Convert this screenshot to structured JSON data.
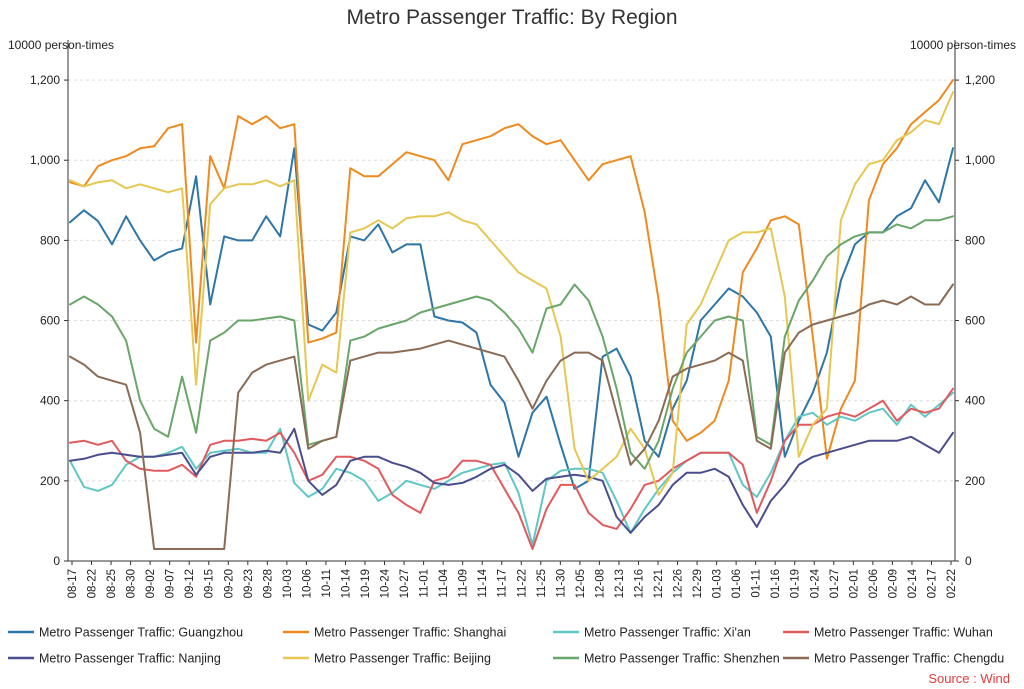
{
  "chart_data": {
    "type": "line",
    "title": "Metro Passenger Traffic: By Region",
    "y_unit_left": "10000 person-times",
    "y_unit_right": "10000 person-times",
    "ylim": [
      0,
      1300
    ],
    "yticks": [
      0,
      200,
      400,
      600,
      800,
      1000,
      1200
    ],
    "ytick_labels": [
      "0",
      "200",
      "400",
      "600",
      "800",
      "1,000",
      "1,200"
    ],
    "grid": true,
    "legend_position": "bottom",
    "x_tick_labels": [
      "08-17",
      "08-22",
      "08-25",
      "08-30",
      "09-02",
      "09-07",
      "09-12",
      "09-15",
      "09-20",
      "09-23",
      "09-28",
      "10-03",
      "10-06",
      "10-11",
      "10-14",
      "10-19",
      "10-24",
      "10-27",
      "11-01",
      "11-04",
      "11-09",
      "11-14",
      "11-17",
      "11-22",
      "11-25",
      "11-30",
      "12-05",
      "12-08",
      "12-13",
      "12-16",
      "12-21",
      "12-26",
      "12-29",
      "01-03",
      "01-06",
      "01-11",
      "01-16",
      "01-19",
      "01-24",
      "01-27",
      "02-01",
      "02-06",
      "02-09",
      "02-14",
      "02-17",
      "02-22"
    ],
    "series": [
      {
        "name": "Metro Passenger Traffic: Guangzhou",
        "color": "#2e75a8",
        "values": [
          845,
          875,
          848,
          790,
          860,
          800,
          750,
          770,
          780,
          960,
          640,
          810,
          800,
          800,
          860,
          810,
          1030,
          590,
          575,
          620,
          810,
          800,
          840,
          770,
          790,
          790,
          610,
          600,
          595,
          570,
          440,
          395,
          260,
          370,
          410,
          290,
          180,
          200,
          510,
          530,
          460,
          300,
          260,
          380,
          450,
          600,
          640,
          680,
          660,
          620,
          560,
          260,
          350,
          420,
          520,
          700,
          790,
          820,
          820,
          860,
          880,
          950,
          895,
          1030
        ]
      },
      {
        "name": "Metro Passenger Traffic: Shanghai",
        "color": "#ee8a1e",
        "values": [
          945,
          935,
          985,
          1000,
          1010,
          1030,
          1035,
          1080,
          1090,
          545,
          1010,
          930,
          1110,
          1090,
          1110,
          1080,
          1090,
          545,
          555,
          570,
          980,
          960,
          960,
          990,
          1020,
          1010,
          1000,
          950,
          1040,
          1050,
          1060,
          1080,
          1090,
          1060,
          1040,
          1050,
          1000,
          950,
          990,
          1000,
          1010,
          870,
          650,
          350,
          300,
          320,
          350,
          450,
          720,
          780,
          850,
          860,
          840,
          560,
          255,
          380,
          450,
          900,
          990,
          1030,
          1090,
          1120,
          1150,
          1200
        ]
      },
      {
        "name": "Metro Passenger Traffic: Xi'an",
        "color": "#5fc7c5",
        "values": [
          250,
          185,
          175,
          190,
          240,
          260,
          260,
          270,
          285,
          230,
          270,
          275,
          280,
          270,
          270,
          330,
          195,
          160,
          180,
          230,
          220,
          200,
          150,
          170,
          200,
          190,
          180,
          200,
          220,
          230,
          240,
          245,
          170,
          40,
          200,
          225,
          230,
          230,
          220,
          150,
          70,
          130,
          180,
          220,
          250,
          270,
          270,
          270,
          190,
          160,
          220,
          300,
          360,
          370,
          340,
          360,
          350,
          370,
          380,
          340,
          390,
          360,
          390,
          420
        ]
      },
      {
        "name": "Metro Passenger Traffic: Wuhan",
        "color": "#e05a5e",
        "values": [
          295,
          300,
          290,
          300,
          250,
          230,
          225,
          225,
          240,
          210,
          290,
          300,
          300,
          305,
          300,
          320,
          270,
          200,
          215,
          260,
          260,
          250,
          230,
          165,
          140,
          120,
          200,
          210,
          250,
          250,
          240,
          180,
          120,
          30,
          130,
          190,
          190,
          120,
          90,
          80,
          130,
          190,
          200,
          230,
          250,
          270,
          270,
          270,
          240,
          120,
          200,
          300,
          340,
          340,
          360,
          370,
          360,
          380,
          400,
          350,
          380,
          370,
          380,
          430
        ]
      },
      {
        "name": "Metro Passenger Traffic: Nanjing",
        "color": "#4b4e8e",
        "values": [
          250,
          255,
          265,
          270,
          265,
          260,
          260,
          265,
          270,
          215,
          260,
          270,
          270,
          270,
          275,
          270,
          330,
          200,
          165,
          190,
          250,
          260,
          260,
          245,
          235,
          220,
          195,
          190,
          195,
          210,
          230,
          240,
          215,
          175,
          205,
          210,
          215,
          210,
          200,
          110,
          70,
          110,
          140,
          190,
          220,
          220,
          230,
          210,
          140,
          85,
          150,
          190,
          240,
          260,
          270,
          280,
          290,
          300,
          300,
          300,
          310,
          290,
          270,
          320
        ]
      },
      {
        "name": "Metro Passenger Traffic: Beijing",
        "color": "#e6c751",
        "values": [
          950,
          935,
          945,
          950,
          930,
          940,
          930,
          920,
          930,
          440,
          890,
          930,
          940,
          940,
          950,
          935,
          950,
          400,
          490,
          470,
          820,
          830,
          850,
          830,
          855,
          860,
          860,
          870,
          850,
          840,
          800,
          760,
          720,
          700,
          680,
          560,
          280,
          200,
          230,
          260,
          330,
          280,
          165,
          220,
          590,
          640,
          720,
          800,
          820,
          820,
          830,
          660,
          260,
          340,
          380,
          850,
          940,
          990,
          1000,
          1050,
          1070,
          1100,
          1090,
          1170
        ]
      },
      {
        "name": "Metro Passenger Traffic: Shenzhen",
        "color": "#6aa669",
        "values": [
          640,
          660,
          640,
          610,
          550,
          400,
          330,
          310,
          460,
          320,
          550,
          570,
          600,
          600,
          605,
          610,
          600,
          290,
          300,
          310,
          550,
          560,
          580,
          590,
          600,
          620,
          630,
          640,
          650,
          660,
          650,
          620,
          580,
          520,
          630,
          640,
          690,
          650,
          560,
          430,
          270,
          230,
          300,
          430,
          520,
          560,
          600,
          610,
          600,
          310,
          290,
          560,
          650,
          700,
          760,
          790,
          810,
          820,
          820,
          840,
          830,
          850,
          850,
          860
        ]
      },
      {
        "name": "Metro Passenger Traffic: Chengdu",
        "color": "#8a6b55",
        "values": [
          510,
          490,
          460,
          450,
          440,
          320,
          30,
          30,
          30,
          30,
          30,
          30,
          420,
          470,
          490,
          500,
          510,
          280,
          300,
          310,
          500,
          510,
          520,
          520,
          525,
          530,
          540,
          550,
          540,
          530,
          520,
          510,
          450,
          380,
          450,
          500,
          520,
          520,
          500,
          370,
          240,
          280,
          350,
          460,
          480,
          490,
          500,
          520,
          500,
          300,
          280,
          520,
          570,
          590,
          600,
          610,
          620,
          640,
          650,
          640,
          660,
          640,
          640,
          690
        ]
      }
    ]
  },
  "source": "Source : Wind"
}
